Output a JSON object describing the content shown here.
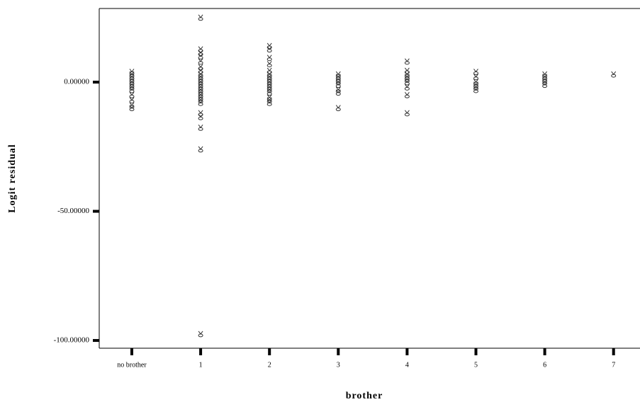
{
  "chart_data": {
    "type": "scatter",
    "xlabel": "brother",
    "ylabel": "Logit residual",
    "categories": [
      "no brother",
      "1",
      "2",
      "3",
      "4",
      "5",
      "6",
      "7"
    ],
    "ylim": [
      -103,
      28.5
    ],
    "yticks": [
      {
        "value": 0,
        "label": "0.00000"
      },
      {
        "value": -50,
        "label": "-50.00000"
      },
      {
        "value": -100,
        "label": "-100.00000"
      }
    ],
    "color": "#333333",
    "x": [
      "no brother",
      "no brother",
      "no brother",
      "no brother",
      "no brother",
      "no brother",
      "no brother",
      "no brother",
      "no brother",
      "no brother",
      "no brother",
      "no brother",
      "1",
      "1",
      "1",
      "1",
      "1",
      "1",
      "1",
      "1",
      "1",
      "1",
      "1",
      "1",
      "1",
      "1",
      "1",
      "1",
      "1",
      "1",
      "1",
      "1",
      "1",
      "1",
      "1",
      "1",
      "2",
      "2",
      "2",
      "2",
      "2",
      "2",
      "2",
      "2",
      "2",
      "2",
      "2",
      "2",
      "2",
      "2",
      "2",
      "2",
      "3",
      "3",
      "3",
      "3",
      "3",
      "3",
      "3",
      "3",
      "4",
      "4",
      "4",
      "4",
      "4",
      "4",
      "4",
      "4",
      "4",
      "5",
      "5",
      "5",
      "5",
      "5",
      "5",
      "6",
      "6",
      "6",
      "6",
      "6",
      "7"
    ],
    "values": [
      4,
      3,
      2,
      1,
      0,
      -1,
      -2,
      -3,
      -5,
      -7,
      -9,
      -10,
      25,
      12.7,
      11.3,
      10,
      8,
      5.8,
      4.4,
      3,
      2,
      1,
      0,
      -1,
      -2,
      -3,
      -4,
      -5,
      -6,
      -8,
      -12,
      -13.5,
      -17.6,
      -26,
      -97.5,
      -7,
      14,
      12.7,
      9.4,
      7,
      4.4,
      3,
      2,
      1,
      0,
      -1,
      -2,
      -3,
      -4,
      -6,
      -7,
      -8,
      3,
      2,
      1,
      0,
      -1,
      -3,
      -4,
      -10,
      8,
      4.4,
      3,
      2,
      1,
      0,
      -2,
      -5,
      -12,
      4,
      2,
      0,
      -1,
      -2,
      -3,
      3,
      2,
      1,
      0,
      -1,
      3
    ]
  }
}
